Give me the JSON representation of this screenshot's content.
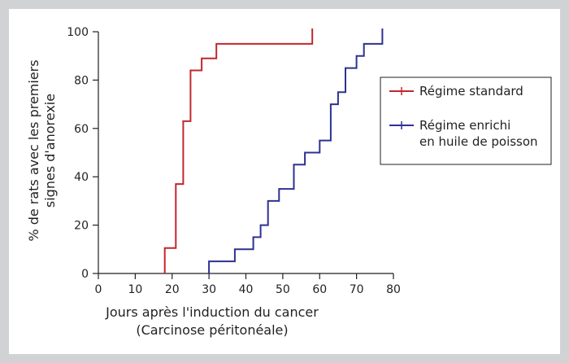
{
  "chart_data": {
    "type": "line",
    "step": true,
    "xlabel_lines": [
      "Jours après l'induction du cancer",
      "(Carcinose péritonéale)"
    ],
    "ylabel_lines": [
      "% de rats avec les premiers",
      "signes d'anorexie"
    ],
    "xlim": [
      0,
      80
    ],
    "ylim": [
      0,
      100
    ],
    "xticks": [
      0,
      10,
      20,
      30,
      40,
      50,
      60,
      70,
      80
    ],
    "yticks": [
      0,
      20,
      40,
      60,
      80,
      100
    ],
    "grid": false,
    "legend_position": "right",
    "series": [
      {
        "name_lines": [
          "Régime standard"
        ],
        "color": "#c1272d",
        "points": [
          [
            18,
            0
          ],
          [
            18,
            10.5
          ],
          [
            21,
            10.5
          ],
          [
            21,
            37
          ],
          [
            23,
            37
          ],
          [
            23,
            63
          ],
          [
            25,
            63
          ],
          [
            25,
            84
          ],
          [
            28,
            84
          ],
          [
            28,
            89
          ],
          [
            32,
            89
          ],
          [
            32,
            95
          ],
          [
            58,
            95
          ],
          [
            58,
            100
          ]
        ]
      },
      {
        "name_lines": [
          "Régime enrichi",
          "en huile de poisson"
        ],
        "color": "#2e3192",
        "points": [
          [
            30,
            0
          ],
          [
            30,
            5
          ],
          [
            37,
            5
          ],
          [
            37,
            10
          ],
          [
            42,
            10
          ],
          [
            42,
            15
          ],
          [
            44,
            15
          ],
          [
            44,
            20
          ],
          [
            46,
            20
          ],
          [
            46,
            30
          ],
          [
            49,
            30
          ],
          [
            49,
            35
          ],
          [
            53,
            35
          ],
          [
            53,
            45
          ],
          [
            56,
            45
          ],
          [
            56,
            50
          ],
          [
            60,
            50
          ],
          [
            60,
            55
          ],
          [
            63,
            55
          ],
          [
            63,
            70
          ],
          [
            65,
            70
          ],
          [
            65,
            75
          ],
          [
            67,
            75
          ],
          [
            67,
            85
          ],
          [
            70,
            85
          ],
          [
            70,
            90
          ],
          [
            72,
            90
          ],
          [
            72,
            95
          ],
          [
            77,
            95
          ],
          [
            77,
            100
          ]
        ]
      }
    ]
  }
}
